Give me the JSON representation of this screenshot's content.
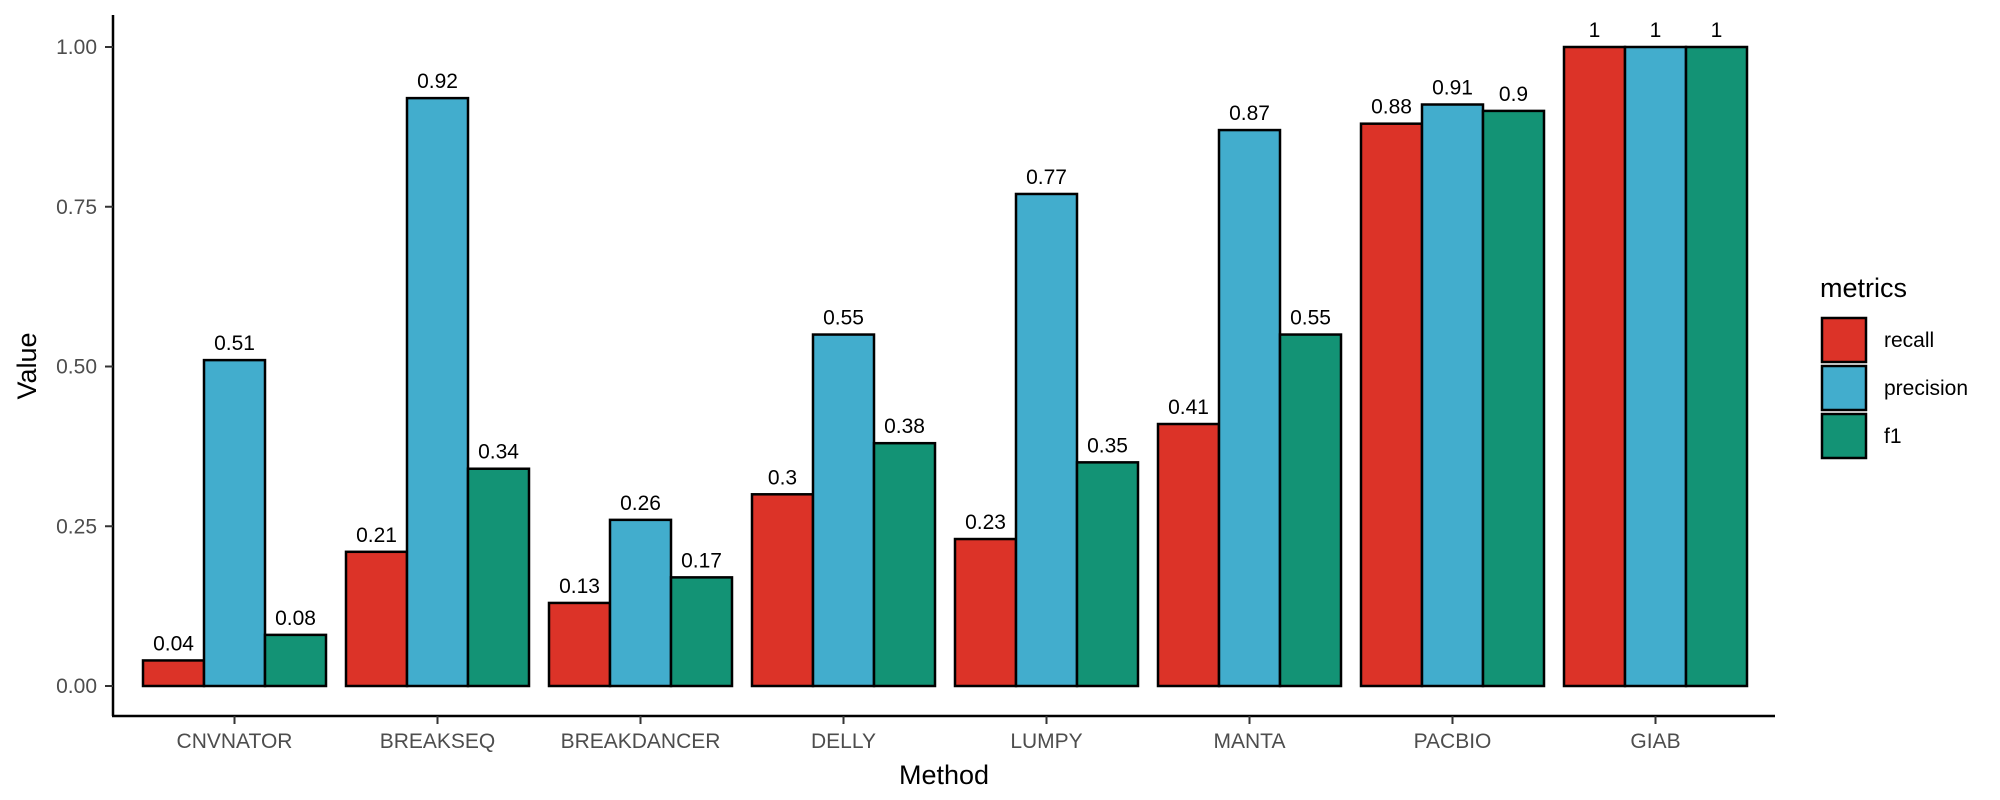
{
  "chart_data": {
    "type": "bar",
    "categories": [
      "CNVNATOR",
      "BREAKSEQ",
      "BREAKDANCER",
      "DELLY",
      "LUMPY",
      "MANTA",
      "PACBIO",
      "GIAB"
    ],
    "series": [
      {
        "name": "recall",
        "color": "#DC3328",
        "values": [
          0.04,
          0.21,
          0.13,
          0.3,
          0.23,
          0.41,
          0.88,
          1
        ],
        "labels": [
          "0.04",
          "0.21",
          "0.13",
          "0.3",
          "0.23",
          "0.41",
          "0.88",
          "1"
        ]
      },
      {
        "name": "precision",
        "color": "#42ADCD",
        "values": [
          0.51,
          0.92,
          0.26,
          0.55,
          0.77,
          0.87,
          0.91,
          1
        ],
        "labels": [
          "0.51",
          "0.92",
          "0.26",
          "0.55",
          "0.77",
          "0.87",
          "0.91",
          "1"
        ]
      },
      {
        "name": "f1",
        "color": "#139375",
        "values": [
          0.08,
          0.34,
          0.17,
          0.38,
          0.35,
          0.55,
          0.9,
          1
        ],
        "labels": [
          "0.08",
          "0.34",
          "0.17",
          "0.38",
          "0.35",
          "0.55",
          "0.9",
          "1"
        ]
      }
    ],
    "xlabel": "Method",
    "ylabel": "Value",
    "ylim": [
      0,
      1.05
    ],
    "yticks": [
      "0.00",
      "0.25",
      "0.50",
      "0.75",
      "1.00"
    ],
    "legend": {
      "title": "metrics",
      "position": "right"
    },
    "grid": false
  }
}
